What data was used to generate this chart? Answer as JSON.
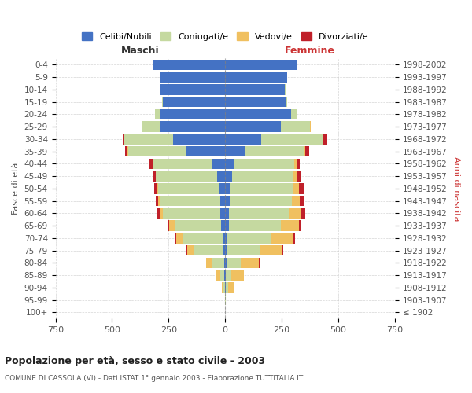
{
  "age_groups": [
    "100+",
    "95-99",
    "90-94",
    "85-89",
    "80-84",
    "75-79",
    "70-74",
    "65-69",
    "60-64",
    "55-59",
    "50-54",
    "45-49",
    "40-44",
    "35-39",
    "30-34",
    "25-29",
    "20-24",
    "15-19",
    "10-14",
    "5-9",
    "0-4"
  ],
  "birth_years": [
    "≤ 1902",
    "1903-1907",
    "1908-1912",
    "1913-1917",
    "1918-1922",
    "1923-1927",
    "1928-1932",
    "1933-1937",
    "1938-1942",
    "1943-1947",
    "1948-1952",
    "1953-1957",
    "1958-1962",
    "1963-1967",
    "1968-1972",
    "1973-1977",
    "1978-1982",
    "1983-1987",
    "1988-1992",
    "1993-1997",
    "1998-2002"
  ],
  "male": {
    "celibe": [
      0,
      0,
      2,
      3,
      5,
      8,
      12,
      18,
      20,
      22,
      28,
      35,
      55,
      175,
      230,
      290,
      290,
      275,
      285,
      285,
      320
    ],
    "coniugato": [
      0,
      0,
      8,
      20,
      55,
      130,
      175,
      205,
      255,
      265,
      270,
      270,
      265,
      255,
      215,
      75,
      20,
      5,
      2,
      0,
      0
    ],
    "vedovo": [
      0,
      0,
      5,
      15,
      25,
      30,
      30,
      25,
      15,
      8,
      5,
      3,
      2,
      2,
      0,
      0,
      0,
      0,
      0,
      0,
      0
    ],
    "divorziato": [
      0,
      0,
      0,
      0,
      0,
      5,
      5,
      5,
      10,
      10,
      10,
      10,
      15,
      10,
      8,
      0,
      0,
      0,
      0,
      0,
      0
    ]
  },
  "female": {
    "nubile": [
      0,
      0,
      2,
      3,
      5,
      8,
      10,
      15,
      18,
      20,
      22,
      30,
      40,
      85,
      160,
      245,
      290,
      270,
      265,
      275,
      320
    ],
    "coniugata": [
      0,
      2,
      10,
      25,
      65,
      145,
      195,
      230,
      265,
      275,
      280,
      270,
      265,
      265,
      270,
      130,
      30,
      5,
      2,
      0,
      0
    ],
    "vedova": [
      0,
      2,
      25,
      55,
      80,
      100,
      95,
      80,
      55,
      35,
      25,
      15,
      10,
      5,
      5,
      2,
      0,
      0,
      0,
      0,
      0
    ],
    "divorziata": [
      0,
      0,
      0,
      0,
      5,
      5,
      8,
      8,
      15,
      20,
      25,
      20,
      15,
      15,
      15,
      3,
      0,
      0,
      0,
      0,
      0
    ]
  },
  "colors": {
    "single": "#4472C4",
    "married": "#C5D9A0",
    "widowed": "#F0C060",
    "divorced": "#C0202A"
  },
  "legend_labels": [
    "Celibi/Nubili",
    "Coniugati/e",
    "Vedovi/e",
    "Divorziati/e"
  ],
  "title": "Popolazione per età, sesso e stato civile - 2003",
  "subtitle": "COMUNE DI CASSOLA (VI) - Dati ISTAT 1° gennaio 2003 - Elaborazione TUTTITALIA.IT",
  "xlabel_left": "Maschi",
  "xlabel_right": "Femmine",
  "ylabel_left": "Fasce di età",
  "ylabel_right": "Anni di nascita",
  "xlim": 750,
  "background_color": "#ffffff",
  "grid_color": "#cccccc"
}
